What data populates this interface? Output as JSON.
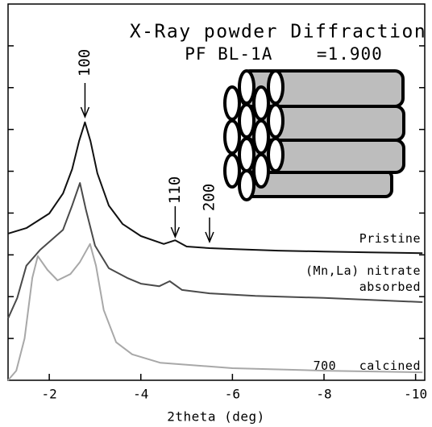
{
  "chart_data": {
    "type": "line",
    "title": "X-Ray powder Diffraction",
    "subtitle": "PF BL-1A    =1.900",
    "x_label": "2theta (deg)",
    "xlim": [
      -1.1,
      -10.2
    ],
    "xticks": [
      -2,
      -4,
      -6,
      -8,
      -10
    ],
    "ylim": [
      0,
      9
    ],
    "yticks": [
      1,
      2,
      3,
      4,
      5,
      6,
      7,
      8
    ],
    "annotations": [
      {
        "text": "100",
        "x": -2.78
      },
      {
        "text": "110",
        "x": -4.75
      },
      {
        "text": "200",
        "x": -5.5
      }
    ],
    "series": [
      {
        "name": "Pristine",
        "color": "#111111",
        "x": [
          -1.1,
          -1.5,
          -2.0,
          -2.3,
          -2.5,
          -2.65,
          -2.78,
          -2.9,
          -3.05,
          -3.3,
          -3.6,
          -4.0,
          -4.5,
          -4.75,
          -5.0,
          -5.5,
          -6,
          -7,
          -8,
          -9,
          -10.15
        ],
        "values": [
          3.51,
          3.64,
          3.99,
          4.47,
          5.05,
          5.72,
          6.17,
          5.72,
          4.95,
          4.18,
          3.74,
          3.45,
          3.26,
          3.35,
          3.2,
          3.16,
          3.14,
          3.1,
          3.08,
          3.06,
          3.04
        ]
      },
      {
        "name": "(Mn,La) nitrate absorbed",
        "color": "#4a4a4a",
        "x": [
          -1.1,
          -1.3,
          -1.5,
          -1.8,
          -2.0,
          -2.3,
          -2.5,
          -2.67,
          -2.8,
          -3.0,
          -3.3,
          -3.7,
          -4.0,
          -4.4,
          -4.63,
          -4.9,
          -5.5,
          -6.5,
          -8,
          -10.15
        ],
        "values": [
          1.48,
          1.97,
          2.74,
          3.12,
          3.31,
          3.6,
          4.18,
          4.72,
          4.08,
          3.22,
          2.68,
          2.45,
          2.31,
          2.25,
          2.37,
          2.16,
          2.08,
          2.02,
          1.97,
          1.87
        ]
      },
      {
        "name": "700   calcined",
        "color": "#a8a8a8",
        "x": [
          -1.1,
          -1.28,
          -1.46,
          -1.63,
          -1.75,
          -1.96,
          -2.18,
          -2.46,
          -2.67,
          -2.89,
          -3.02,
          -3.19,
          -3.46,
          -3.81,
          -4.42,
          -6,
          -8,
          -10.15
        ],
        "values": [
          0.0,
          0.23,
          1.0,
          2.45,
          2.97,
          2.64,
          2.39,
          2.54,
          2.83,
          3.26,
          2.74,
          1.68,
          0.91,
          0.62,
          0.42,
          0.29,
          0.23,
          0.19
        ]
      }
    ]
  }
}
